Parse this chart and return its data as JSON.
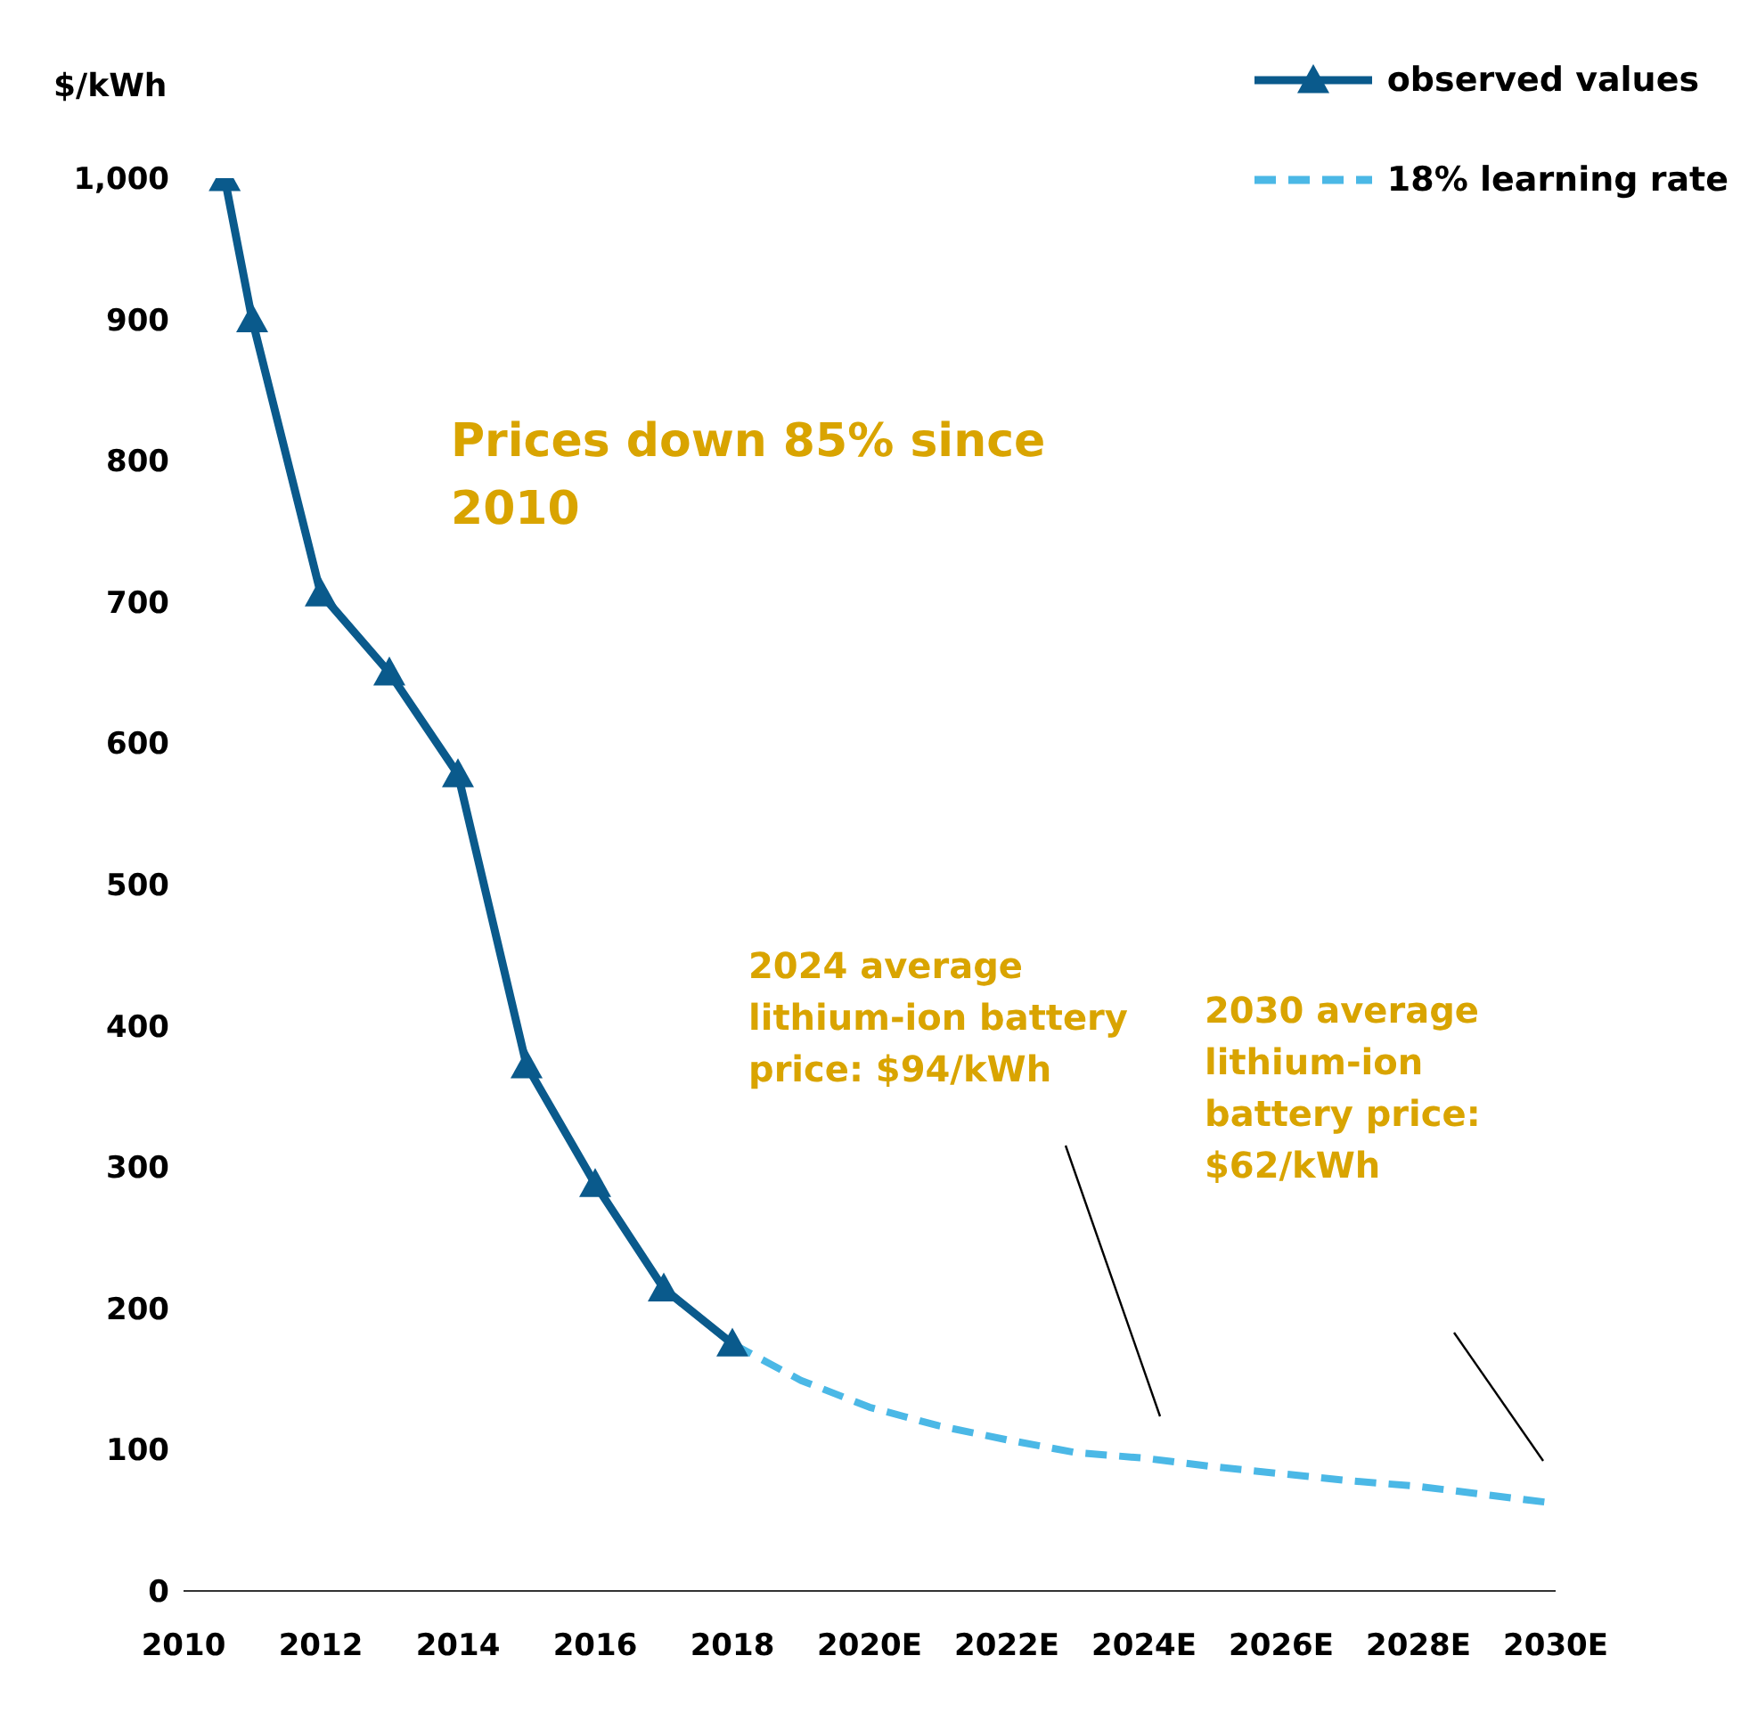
{
  "chart_data": {
    "type": "line",
    "ylabel": "$/kWh",
    "xlim": [
      2010,
      2030
    ],
    "xticks": [
      2010,
      2012,
      2014,
      2016,
      2018,
      {
        "value": 2020,
        "label": "2020E"
      },
      {
        "value": 2022,
        "label": "2022E"
      },
      {
        "value": 2024,
        "label": "2024E"
      },
      {
        "value": 2026,
        "label": "2026E"
      },
      {
        "value": 2028,
        "label": "2028E"
      },
      {
        "value": 2030,
        "label": "2030E"
      }
    ],
    "ylim": [
      0,
      1000
    ],
    "yticks": [
      0,
      100,
      200,
      300,
      400,
      500,
      600,
      700,
      800,
      900,
      {
        "value": 1000,
        "label": "1,000"
      }
    ],
    "legend": "top right",
    "series": [
      {
        "name": "observed values",
        "color": "#0a5a8c",
        "marker": "triangle",
        "line_style": "solid",
        "x": [
          2010.6,
          2011,
          2012,
          2013,
          2014,
          2015,
          2016,
          2017,
          2018
        ],
        "values": [
          1000,
          900,
          706,
          650,
          578,
          372,
          288,
          214,
          175
        ]
      },
      {
        "name": "18% learning rate",
        "color": "#4bb8e6",
        "marker": "none",
        "line_style": "dashed",
        "x": [
          2018,
          2019,
          2020,
          2021,
          2022,
          2023,
          2024,
          2025,
          2026,
          2027,
          2028,
          2029,
          2030
        ],
        "values": [
          175,
          149,
          130,
          117,
          107,
          98,
          94,
          88,
          83,
          78,
          74,
          68,
          62
        ]
      }
    ],
    "annotations": [
      "Prices down 85% since 2010",
      "2024 average lithium-ion battery price: $94/kWh",
      "2030 average lithium-ion battery price: $62/kWh"
    ]
  }
}
